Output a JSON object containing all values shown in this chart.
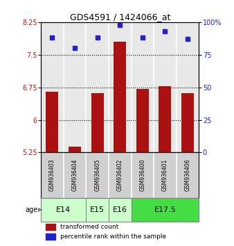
{
  "title": "GDS4591 / 1424066_at",
  "samples": [
    "GSM936403",
    "GSM936404",
    "GSM936405",
    "GSM936402",
    "GSM936400",
    "GSM936401",
    "GSM936406"
  ],
  "bar_values": [
    6.65,
    5.38,
    6.62,
    7.8,
    6.72,
    6.78,
    6.62
  ],
  "percentile_values": [
    88,
    80,
    88,
    98,
    88,
    93,
    87
  ],
  "bar_color": "#aa1111",
  "dot_color": "#2222cc",
  "ylim_left": [
    5.25,
    8.25
  ],
  "ylim_right": [
    0,
    100
  ],
  "yticks_left": [
    5.25,
    6.0,
    6.75,
    7.5,
    8.25
  ],
  "ytick_labels_left": [
    "5.25",
    "6",
    "6.75",
    "7.5",
    "8.25"
  ],
  "yticks_right": [
    0,
    25,
    50,
    75,
    100
  ],
  "ytick_labels_right": [
    "0",
    "25",
    "50",
    "75",
    "100%"
  ],
  "hlines": [
    6.0,
    6.75,
    7.5
  ],
  "age_groups": [
    {
      "label": "E14",
      "span": [
        0,
        1
      ],
      "color": "#ccffcc"
    },
    {
      "label": "E15",
      "span": [
        2,
        2
      ],
      "color": "#ccffcc"
    },
    {
      "label": "E16",
      "span": [
        3,
        3
      ],
      "color": "#ccffcc"
    },
    {
      "label": "E17.5",
      "span": [
        4,
        6
      ],
      "color": "#44dd44"
    }
  ],
  "age_label": "age",
  "legend_bar_label": "transformed count",
  "legend_dot_label": "percentile rank within the sample",
  "bar_width": 0.55,
  "plot_bg_color": "#e8e8e8",
  "sample_band_color": "#d0d0d0"
}
